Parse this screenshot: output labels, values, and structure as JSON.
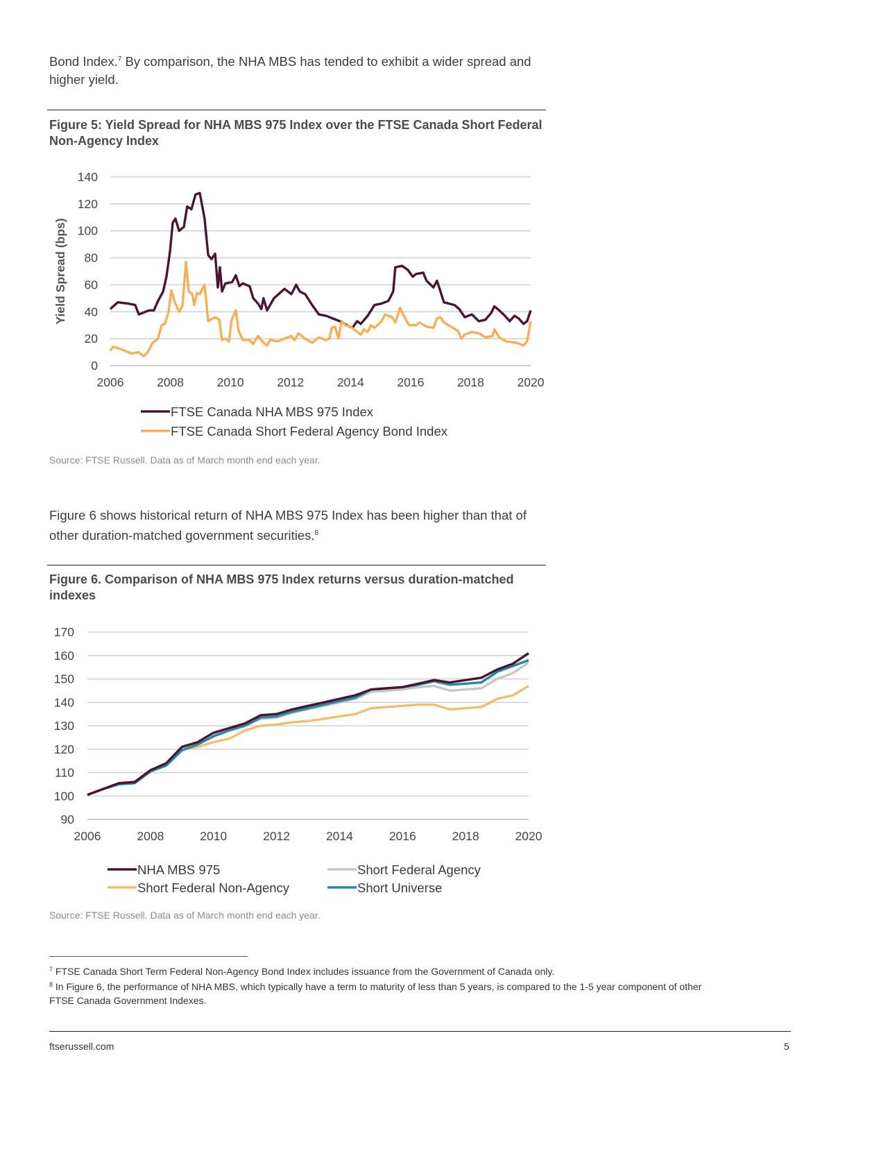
{
  "intro": {
    "text_before": "Bond Index.",
    "note_ref": "7",
    "text_after": " By comparison, the NHA MBS has tended to exhibit a wider spread and higher yield."
  },
  "figure5": {
    "title": "Figure 5: Yield Spread for NHA MBS 975 Index over the FTSE Canada Short Federal Non-Agency Index",
    "source": "Source: FTSE Russell. Data as of March month end each year."
  },
  "middle": {
    "text": "Figure 6 shows historical return of NHA MBS 975 Index has been higher than that of other duration-matched government securities.",
    "note_ref": "8"
  },
  "figure6": {
    "title": "Figure 6. Comparison of NHA MBS 975 Index returns versus duration-matched indexes",
    "source": "Source: FTSE Russell. Data as of March month end each year."
  },
  "footnotes": [
    {
      "num": "7",
      "text": "FTSE Canada Short Term Federal Non-Agency Bond Index includes issuance from the Government of Canada only."
    },
    {
      "num": "8",
      "text": " In Figure 6, the performance of NHA MBS, which typically have a term to maturity of less than 5 years, is compared to the 1-5 year component of other FTSE Canada Government Indexes."
    }
  ],
  "footer": {
    "site": "ftserussell.com",
    "page": "5"
  },
  "chart_data": [
    {
      "type": "line",
      "title": "",
      "xlabel": "",
      "ylabel": "Yield Spread (bps)",
      "xlim": [
        2006,
        2020
      ],
      "ylim": [
        0,
        140
      ],
      "xticks": [
        "2006",
        "2008",
        "2010",
        "2012",
        "2014",
        "2016",
        "2018",
        "2020"
      ],
      "yticks": [
        "0",
        "20",
        "40",
        "60",
        "80",
        "100",
        "120",
        "140"
      ],
      "grid": "horizontal",
      "legend": "bottom",
      "series": [
        {
          "name": "FTSE Canada NHA MBS 975 Index",
          "color": "#4b1433",
          "x": [
            2006.0,
            2006.25,
            2006.6,
            2006.83,
            2006.95,
            2007.29,
            2007.45,
            2007.59,
            2007.76,
            2007.87,
            2007.99,
            2008.08,
            2008.17,
            2008.29,
            2008.45,
            2008.56,
            2008.7,
            2008.84,
            2008.98,
            2009.14,
            2009.26,
            2009.37,
            2009.49,
            2009.58,
            2009.65,
            2009.72,
            2009.83,
            2010.06,
            2010.18,
            2010.3,
            2010.41,
            2010.64,
            2010.76,
            2010.92,
            2011.03,
            2011.1,
            2011.22,
            2011.45,
            2011.8,
            2012.03,
            2012.19,
            2012.31,
            2012.49,
            2012.72,
            2012.95,
            2013.18,
            2013.41,
            2013.64,
            2013.88,
            2014.06,
            2014.22,
            2014.34,
            2014.57,
            2014.8,
            2015.03,
            2015.26,
            2015.42,
            2015.49,
            2015.72,
            2015.91,
            2016.07,
            2016.18,
            2016.42,
            2016.53,
            2016.76,
            2016.88,
            2017.11,
            2017.46,
            2017.62,
            2017.8,
            2018.04,
            2018.27,
            2018.49,
            2018.68,
            2018.79,
            2018.95,
            2019.14,
            2019.3,
            2019.46,
            2019.6,
            2019.76,
            2019.88,
            2020.0
          ],
          "y": [
            42,
            47,
            46,
            45,
            38,
            41,
            41,
            48,
            55,
            66,
            85,
            106,
            109,
            100,
            103,
            118,
            116,
            127,
            128,
            109,
            82,
            79,
            83,
            58,
            73,
            55,
            61,
            62,
            67,
            59,
            61,
            59,
            50,
            46,
            42,
            50,
            41,
            50,
            57,
            53,
            60,
            55,
            53,
            45,
            38,
            37,
            35,
            33,
            30,
            28,
            33,
            31,
            37,
            45,
            46,
            48,
            55,
            73,
            74,
            71,
            66,
            68,
            69,
            63,
            58,
            63,
            47,
            45,
            42,
            36,
            38,
            33,
            34,
            39,
            44,
            41,
            37,
            33,
            37,
            35,
            31,
            33,
            41
          ]
        },
        {
          "name": "FTSE Canada Short Federal Agency Bond Index",
          "color": "#f7ae55",
          "x": [
            2006.0,
            2006.09,
            2006.25,
            2006.48,
            2006.72,
            2006.95,
            2007.11,
            2007.25,
            2007.41,
            2007.59,
            2007.71,
            2007.82,
            2007.94,
            2008.03,
            2008.15,
            2008.29,
            2008.4,
            2008.52,
            2008.61,
            2008.73,
            2008.79,
            2008.89,
            2008.98,
            2009.14,
            2009.26,
            2009.49,
            2009.63,
            2009.72,
            2009.83,
            2009.95,
            2010.04,
            2010.18,
            2010.27,
            2010.41,
            2010.64,
            2010.76,
            2010.92,
            2011.1,
            2011.22,
            2011.33,
            2011.57,
            2011.8,
            2012.03,
            2012.14,
            2012.26,
            2012.49,
            2012.72,
            2012.95,
            2013.18,
            2013.3,
            2013.37,
            2013.48,
            2013.6,
            2013.64,
            2013.71,
            2013.83,
            2013.99,
            2014.11,
            2014.34,
            2014.45,
            2014.57,
            2014.68,
            2014.8,
            2015.03,
            2015.15,
            2015.38,
            2015.49,
            2015.65,
            2015.84,
            2015.95,
            2016.18,
            2016.3,
            2016.53,
            2016.76,
            2016.88,
            2016.99,
            2017.11,
            2017.34,
            2017.57,
            2017.69,
            2017.8,
            2018.04,
            2018.27,
            2018.49,
            2018.73,
            2018.79,
            2018.95,
            2019.18,
            2019.53,
            2019.76,
            2019.88,
            2020.0
          ],
          "y": [
            11,
            14,
            13,
            11,
            9,
            10,
            7,
            10,
            17,
            20,
            30,
            31,
            40,
            56,
            47,
            40,
            44,
            77,
            55,
            53,
            45,
            54,
            53,
            60,
            33,
            36,
            34,
            19,
            20,
            18,
            34,
            41,
            26,
            19,
            19,
            16,
            22,
            17,
            15,
            19,
            18,
            20,
            22,
            19,
            24,
            20,
            17,
            21,
            19,
            20,
            28,
            29,
            20,
            26,
            33,
            30,
            29,
            27,
            23,
            27,
            25,
            30,
            28,
            33,
            38,
            36,
            32,
            43,
            34,
            30,
            30,
            32,
            29,
            28,
            35,
            36,
            32,
            29,
            26,
            20,
            23,
            25,
            24,
            21,
            22,
            27,
            21,
            18,
            17,
            15,
            18,
            33
          ]
        }
      ]
    },
    {
      "type": "line",
      "title": "",
      "xlabel": "",
      "ylabel": "",
      "xlim": [
        2006,
        2020
      ],
      "ylim": [
        90,
        170
      ],
      "xticks": [
        "2006",
        "2008",
        "2010",
        "2012",
        "2014",
        "2016",
        "2018",
        "2020"
      ],
      "yticks": [
        "90",
        "100",
        "110",
        "120",
        "130",
        "140",
        "150",
        "160",
        "170"
      ],
      "grid": "horizontal",
      "legend": "bottom",
      "x": [
        2006,
        2006.5,
        2007,
        2007.5,
        2008,
        2008.5,
        2009,
        2009.5,
        2010,
        2010.5,
        2011,
        2011.5,
        2012,
        2012.5,
        2013,
        2013.5,
        2014,
        2014.5,
        2015,
        2015.5,
        2016,
        2016.5,
        2017,
        2017.5,
        2018,
        2018.5,
        2019,
        2019.5,
        2020
      ],
      "series": [
        {
          "name": "Short Federal Non-Agency",
          "color": "#f7bb6e",
          "y": [
            100.5,
            103,
            105,
            106,
            111,
            114,
            120,
            121,
            123,
            124.5,
            128,
            130,
            130.5,
            131.5,
            132,
            133,
            134,
            135,
            137.5,
            138,
            138.5,
            139,
            139,
            137,
            137.5,
            138,
            141.5,
            143,
            147
          ]
        },
        {
          "name": "Short Federal Agency",
          "color": "#c6c6c6",
          "y": [
            100.5,
            103,
            105,
            105.5,
            110.5,
            113,
            120.5,
            122,
            126,
            128,
            130,
            133,
            133.5,
            135.5,
            137,
            138.5,
            140,
            141.5,
            144.5,
            145,
            145.5,
            146.5,
            147,
            145,
            145.5,
            146,
            150,
            152.5,
            157
          ]
        },
        {
          "name": "Short Universe",
          "color": "#2a86a2",
          "y": [
            100.5,
            103,
            105,
            105.5,
            110.5,
            113,
            119.5,
            122,
            125.5,
            128,
            130,
            133.5,
            134,
            136,
            137.5,
            139,
            140.5,
            142,
            145.5,
            146,
            146.5,
            147.5,
            149,
            147.5,
            148,
            148.5,
            153,
            155.5,
            158
          ]
        },
        {
          "name": "NHA MBS 975",
          "color": "#4b1433",
          "y": [
            100.5,
            103,
            105.5,
            106,
            111,
            114,
            121,
            123,
            127,
            129,
            131,
            134.5,
            135,
            137,
            138.5,
            140,
            141.5,
            143,
            145.5,
            146,
            146.5,
            148,
            149.5,
            148.5,
            149.5,
            150.5,
            154,
            156.5,
            161
          ]
        }
      ]
    }
  ]
}
